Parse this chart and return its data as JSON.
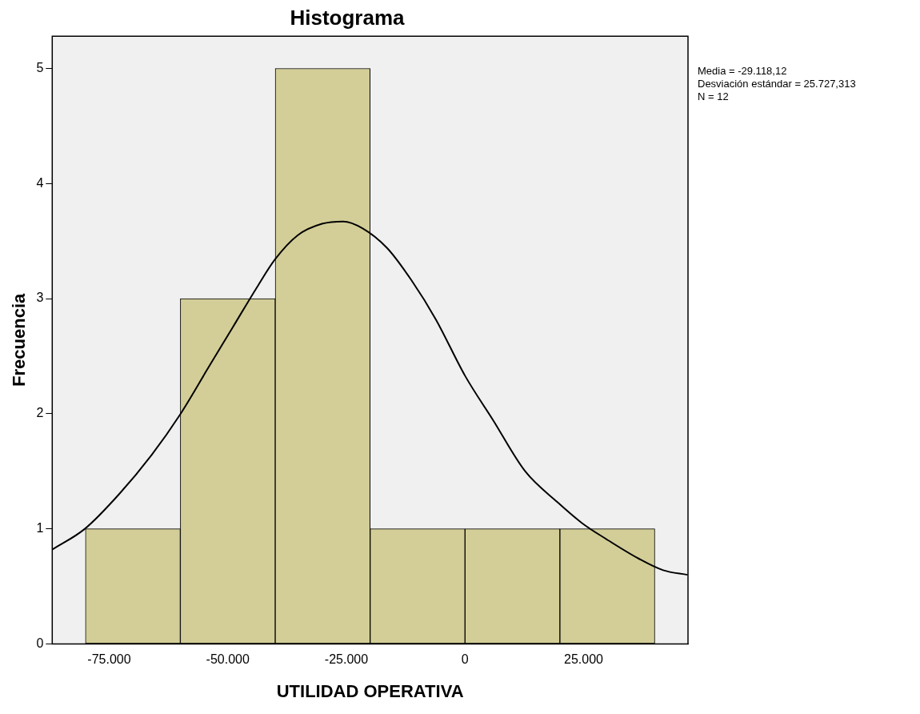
{
  "chart_data": {
    "type": "histogram",
    "title": "Histograma",
    "xlabel": "UTILIDAD OPERATIVA",
    "ylabel": "Frecuencia",
    "bins": [
      -80000,
      -60000,
      -40000,
      -20000,
      0,
      20000,
      40000
    ],
    "values": [
      1,
      3,
      5,
      1,
      1,
      1
    ],
    "color": "#d3ce97",
    "xlim": [
      -87000,
      47000
    ],
    "xticks": [
      {
        "value": -75000,
        "label": "-75.000"
      },
      {
        "value": -50000,
        "label": "-50.000"
      },
      {
        "value": -25000,
        "label": "-25.000"
      },
      0,
      {
        "value": 25000,
        "label": "25.000"
      }
    ],
    "ylim": [
      0,
      5.28
    ],
    "yticks": [
      0,
      1,
      2,
      3,
      4,
      5
    ],
    "grid": false,
    "series": [
      {
        "type": "line",
        "color": "#000000",
        "x": [
          -86970,
          -80120,
          -72930,
          -66080,
          -60090,
          -54100,
          -48960,
          -43830,
          -40060,
          -35270,
          -30130,
          -25680,
          -21570,
          -16440,
          -11300,
          -6160,
          0,
          5820,
          12670,
          19520,
          24650,
          29790,
          36640,
          41770,
          46910
        ],
        "values": [
          0.82,
          1.0,
          1.3,
          1.64,
          1.99,
          2.4,
          2.75,
          3.1,
          3.34,
          3.55,
          3.65,
          3.67,
          3.61,
          3.44,
          3.16,
          2.82,
          2.33,
          1.95,
          1.5,
          1.23,
          1.05,
          0.91,
          0.74,
          0.64,
          0.6
        ]
      }
    ],
    "annotations": [
      "Media = -29.118,12",
      "Desviación estándar = 25.727,313",
      "N = 12"
    ]
  }
}
